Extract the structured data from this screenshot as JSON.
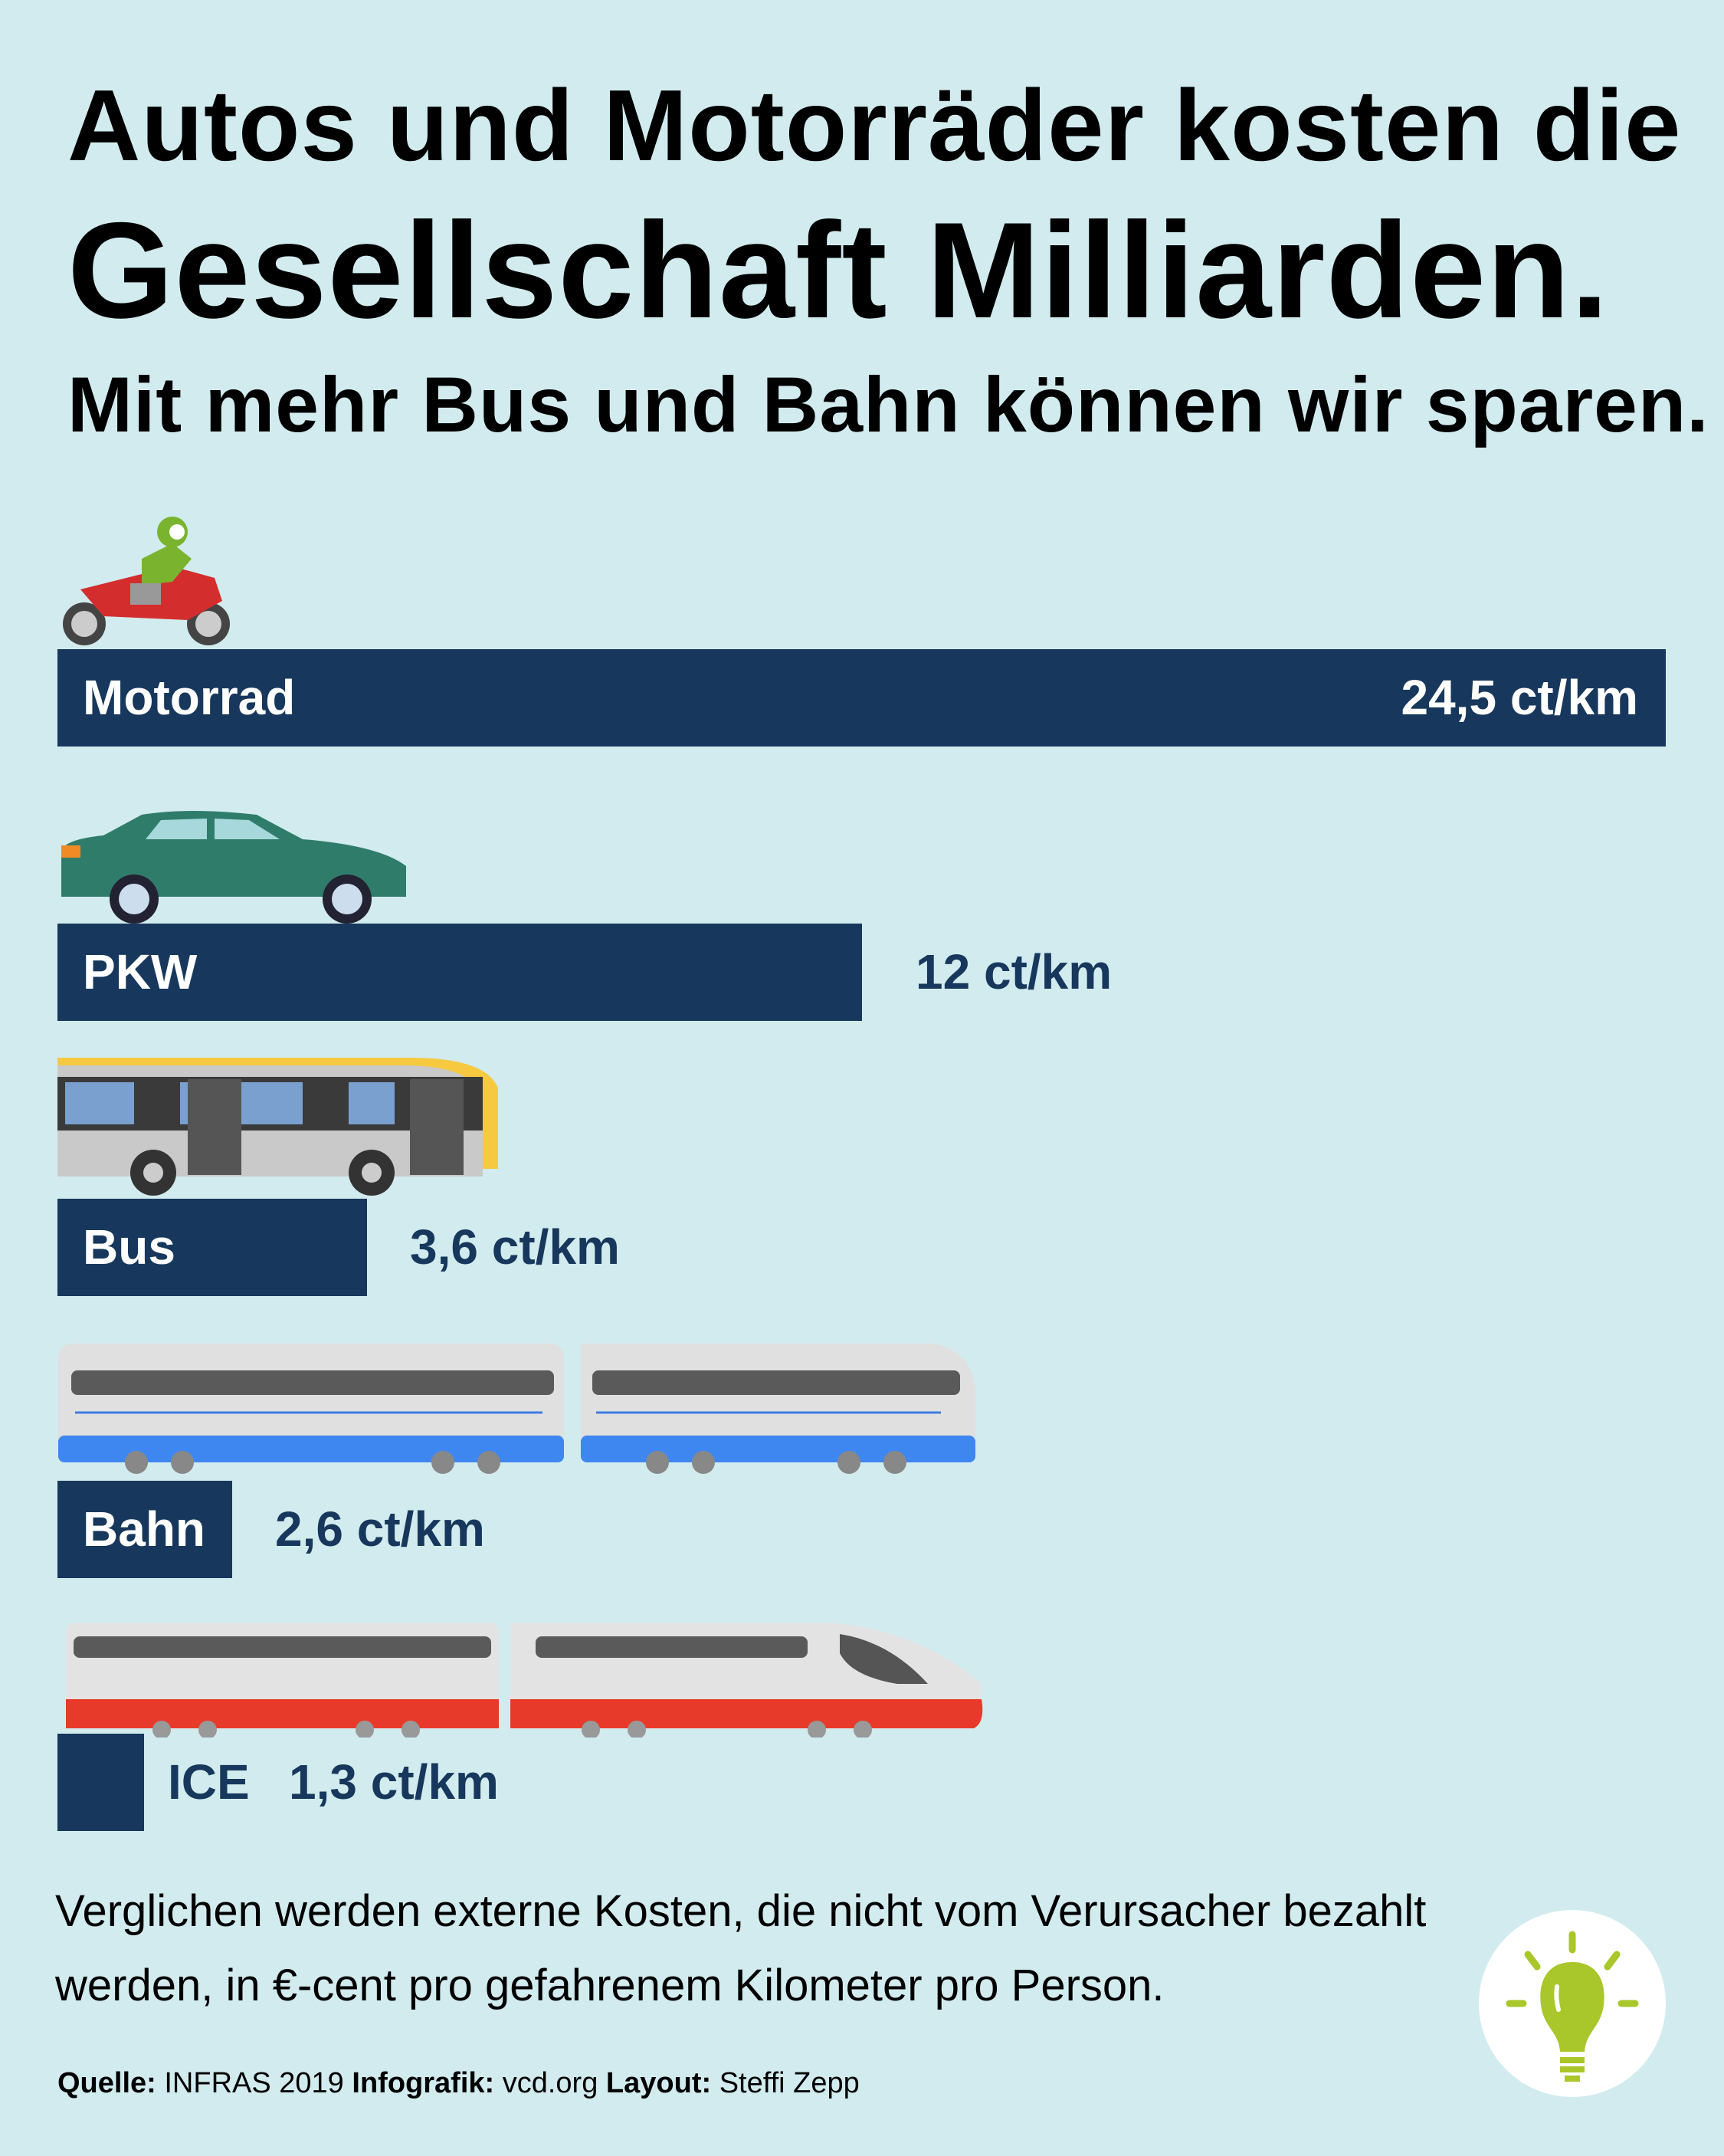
{
  "title": {
    "line1": "Autos und Motorräder kosten die",
    "line2": "Gesellschaft Milliarden.",
    "line3": "Mit mehr Bus und Bahn können wir sparen."
  },
  "chart_data": {
    "type": "bar",
    "orientation": "horizontal",
    "unit": "ct/km",
    "categories": [
      "Motorrad",
      "PKW",
      "Bus",
      "Bahn",
      "ICE"
    ],
    "values": [
      24.5,
      12,
      3.6,
      2.6,
      1.3
    ],
    "value_labels": [
      "24,5 ct/km",
      "12 ct/km",
      "3,6 ct/km",
      "2,6 ct/km",
      "1,3 ct/km"
    ]
  },
  "note": "Verglichen werden externe Kosten, die nicht vom Verursacher bezahlt werden, in €-cent pro gefahrenem Kilometer pro Person.",
  "credit": {
    "source_label": "Quelle:",
    "source": "INFRAS 2019",
    "graphic_label": "Infografik:",
    "graphic": "vcd.org",
    "layout_label": "Layout:",
    "layout": "Steffi Zepp"
  },
  "colors": {
    "background": "#d2ebee",
    "bar": "#17385c",
    "bulb": "#a9c62a"
  },
  "icons": [
    "motorcycle-icon",
    "car-icon",
    "bus-icon",
    "train-icon",
    "ice-train-icon",
    "lightbulb-icon"
  ]
}
